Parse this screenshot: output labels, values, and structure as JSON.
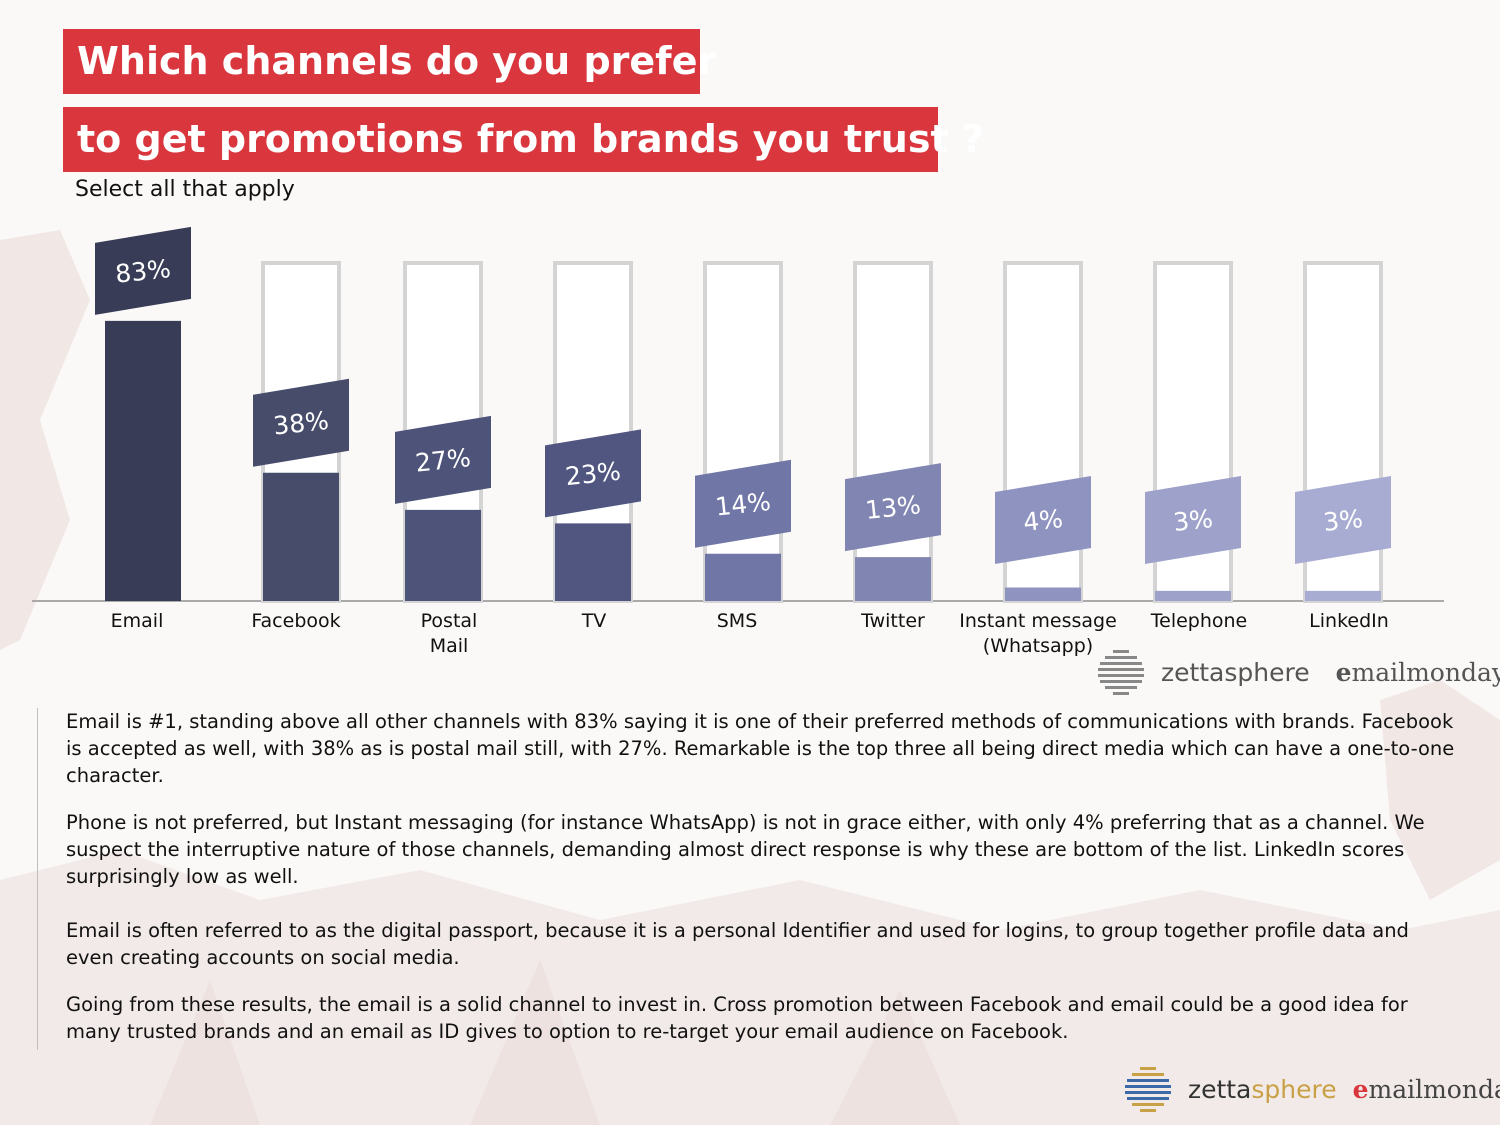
{
  "header": {
    "title_line1": "Which channels do you prefer",
    "title_line2": "to get promotions from brands you trust ?",
    "subtitle": "Select all that apply"
  },
  "chart_data": {
    "type": "bar",
    "title": "Which channels do you prefer to get promotions from brands you trust ?",
    "subtitle": "Select all that apply",
    "categories": [
      "Email",
      "Facebook",
      "Postal Mail",
      "TV",
      "SMS",
      "Twitter",
      "Instant message (Whatsapp)",
      "Telephone",
      "LinkedIn"
    ],
    "category_lines": [
      [
        "Email"
      ],
      [
        "Facebook"
      ],
      [
        "Postal",
        "Mail"
      ],
      [
        "TV"
      ],
      [
        "SMS"
      ],
      [
        "Twitter"
      ],
      [
        "Instant message",
        "(Whatsapp)"
      ],
      [
        "Telephone"
      ],
      [
        "LinkedIn"
      ]
    ],
    "values": [
      83,
      38,
      27,
      23,
      14,
      13,
      4,
      3,
      3
    ],
    "value_labels": [
      "83%",
      "38%",
      "27%",
      "23%",
      "14%",
      "13%",
      "4%",
      "3%",
      "3%"
    ],
    "unit": "%",
    "ylim": [
      0,
      100
    ],
    "grid": false,
    "legend": "none",
    "colors": {
      "bars": [
        "#383c57",
        "#474c6b",
        "#4d5379",
        "#505680",
        "#7076a6",
        "#8085b2",
        "#8f93c0",
        "#9ea2ca",
        "#a9acd2"
      ],
      "track_outline": "#d4d4d4",
      "track_fill": "#ffffff",
      "baseline": "#aaaaaa",
      "title_bg": "#d9363e"
    }
  },
  "logos": {
    "zetta": "zetta",
    "sphere": "sphere",
    "email_e": "e",
    "email_rest": "mailmonday"
  },
  "body": {
    "p1": "Email is #1, standing above all other channels with 83% saying it is one of their preferred methods of communications with brands. Facebook is accepted as well, with 38% as is postal mail still, with 27%. Remarkable is the top three all being direct media which can have a one-to-one character.",
    "p2": "Phone is not preferred, but Instant messaging (for instance WhatsApp) is not in grace either, with only 4% preferring that as a channel. We suspect the interruptive nature of those channels, demanding almost direct response is why these are bottom of the list. LinkedIn scores surprisingly low as well.",
    "p3": "Email is often referred to as the digital passport, because it is a personal Identifier and used for logins, to group together profile data and even creating accounts on social media.",
    "p4": "Going from these results, the email is a solid channel to invest in. Cross promotion between Facebook and email could be a good idea for many trusted brands and an email as ID gives to option to re-target your email audience on Facebook."
  }
}
